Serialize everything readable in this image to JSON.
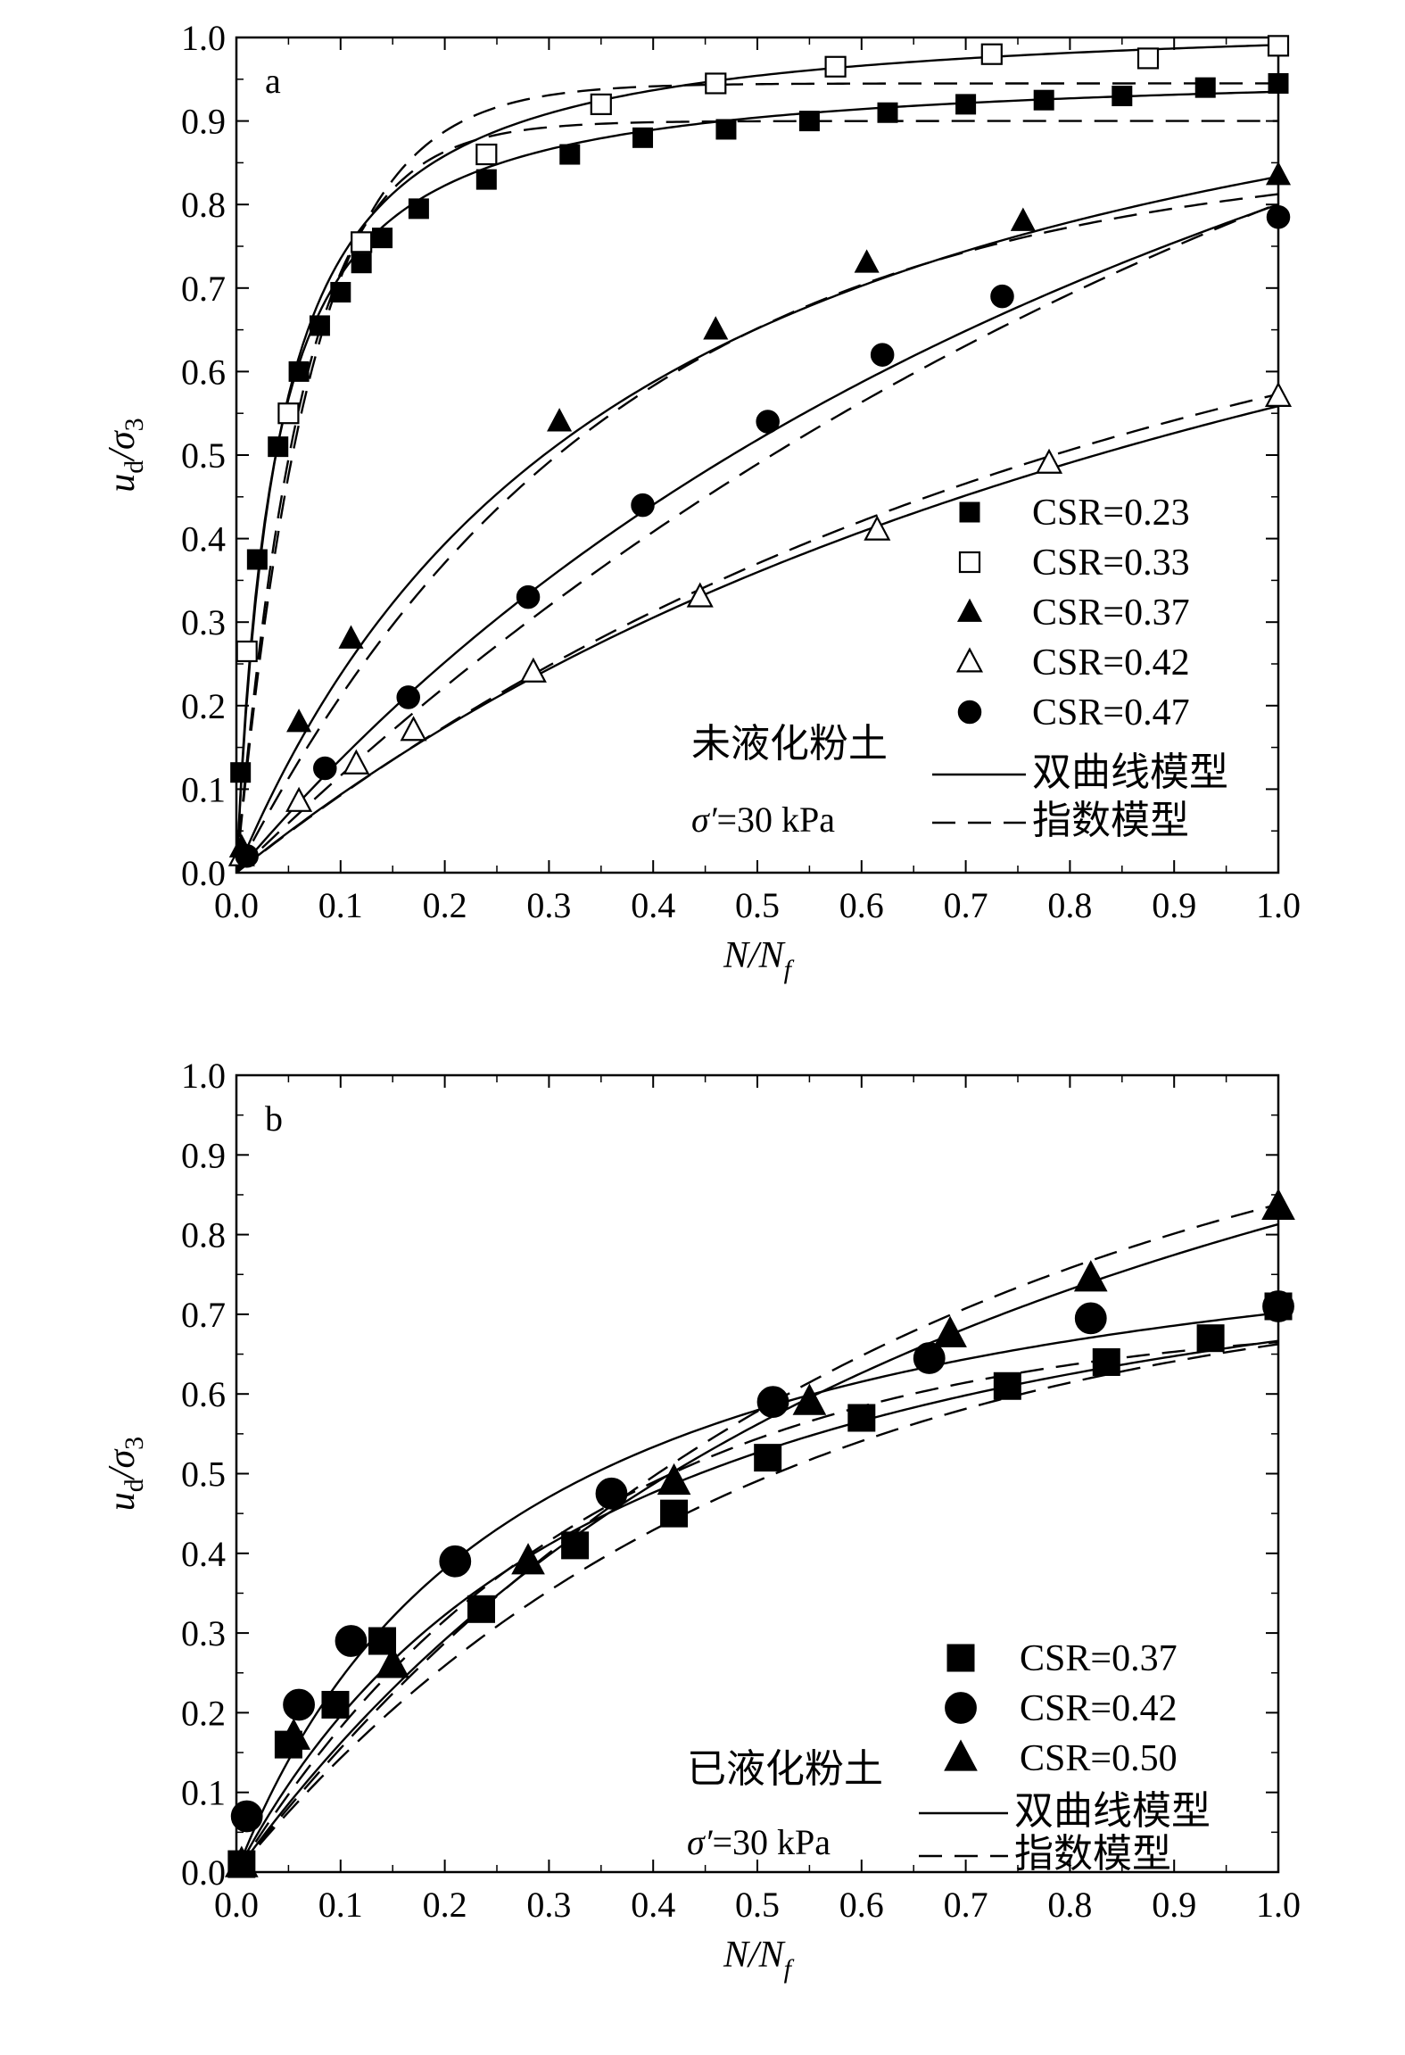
{
  "chart_data": [
    {
      "type": "scatter",
      "panel_label": "a",
      "xlabel": "N/N",
      "xlabel_sub": "f",
      "ylabel": "u",
      "ylabel_sub": "d",
      "ylabel_mid": "/σ",
      "ylabel_sub2": "3",
      "xlim": [
        0,
        1.0
      ],
      "ylim": [
        0,
        1.0
      ],
      "x_ticks": [
        "0.0",
        "0.1",
        "0.2",
        "0.3",
        "0.4",
        "0.5",
        "0.6",
        "0.7",
        "0.8",
        "0.9",
        "1.0"
      ],
      "y_ticks": [
        "0.0",
        "0.1",
        "0.2",
        "0.3",
        "0.4",
        "0.5",
        "0.6",
        "0.7",
        "0.8",
        "0.9",
        "1.0"
      ],
      "annotation": "未液化粉土",
      "condition_label": "σ′=30 kPa",
      "model_legend": [
        {
          "style": "solid",
          "label": "双曲线模型"
        },
        {
          "style": "dashed",
          "label": "指数模型"
        }
      ],
      "series": [
        {
          "name": "CSR=0.23",
          "marker": "square",
          "filled": true,
          "x": [
            0.004,
            0.02,
            0.04,
            0.06,
            0.08,
            0.1,
            0.12,
            0.14,
            0.175,
            0.24,
            0.32,
            0.39,
            0.47,
            0.55,
            0.625,
            0.7,
            0.775,
            0.85,
            0.93,
            1.0
          ],
          "y": [
            0.12,
            0.375,
            0.51,
            0.6,
            0.655,
            0.695,
            0.73,
            0.76,
            0.795,
            0.83,
            0.86,
            0.88,
            0.89,
            0.9,
            0.91,
            0.92,
            0.925,
            0.93,
            0.94,
            0.945
          ],
          "fit_hyperbolic": {
            "a": 0.0365,
            "b": 1.033
          },
          "fit_exponential": {
            "A": 0.9,
            "k": 16.0
          }
        },
        {
          "name": "CSR=0.33",
          "marker": "square",
          "filled": false,
          "x": [
            0.01,
            0.05,
            0.12,
            0.24,
            0.35,
            0.46,
            0.575,
            0.725,
            0.875,
            1.0
          ],
          "y": [
            0.265,
            0.55,
            0.755,
            0.86,
            0.92,
            0.945,
            0.965,
            0.98,
            0.975,
            0.99
          ],
          "fit_hyperbolic": {
            "a": 0.039,
            "b": 0.97
          },
          "fit_exponential": {
            "A": 0.945,
            "k": 14.0
          }
        },
        {
          "name": "CSR=0.37",
          "marker": "triangle",
          "filled": true,
          "x": [
            0.005,
            0.06,
            0.11,
            0.31,
            0.46,
            0.605,
            0.755,
            1.0
          ],
          "y": [
            0.03,
            0.18,
            0.28,
            0.54,
            0.65,
            0.73,
            0.78,
            0.835
          ],
          "fit_hyperbolic": {
            "a": 0.335,
            "b": 0.865
          },
          "fit_exponential": {
            "A": 0.865,
            "k": 2.8
          }
        },
        {
          "name": "CSR=0.42",
          "marker": "triangle",
          "filled": false,
          "x": [
            0.005,
            0.06,
            0.115,
            0.17,
            0.285,
            0.445,
            0.615,
            0.78,
            1.0
          ],
          "y": [
            0.02,
            0.085,
            0.13,
            0.17,
            0.24,
            0.33,
            0.41,
            0.49,
            0.57
          ],
          "fit_hyperbolic": {
            "a": 0.99,
            "b": 0.8
          },
          "fit_exponential": {
            "A": 0.82,
            "k": 1.2
          }
        },
        {
          "name": "CSR=0.47",
          "marker": "circle",
          "filled": true,
          "x": [
            0.01,
            0.085,
            0.165,
            0.28,
            0.39,
            0.51,
            0.62,
            0.735,
            1.0
          ],
          "y": [
            0.02,
            0.125,
            0.21,
            0.33,
            0.44,
            0.54,
            0.62,
            0.69,
            0.785
          ],
          "fit_hyperbolic": {
            "a": 0.68,
            "b": 0.57
          },
          "fit_exponential": {
            "A": 1.35,
            "k": 0.9
          }
        }
      ]
    },
    {
      "type": "scatter",
      "panel_label": "b",
      "xlabel": "N/N",
      "xlabel_sub": "f",
      "ylabel": "u",
      "ylabel_sub": "d",
      "ylabel_mid": "/σ",
      "ylabel_sub2": "3",
      "xlim": [
        0,
        1.0
      ],
      "ylim": [
        0,
        1.0
      ],
      "x_ticks": [
        "0.0",
        "0.1",
        "0.2",
        "0.3",
        "0.4",
        "0.5",
        "0.6",
        "0.7",
        "0.8",
        "0.9",
        "1.0"
      ],
      "y_ticks": [
        "0.0",
        "0.1",
        "0.2",
        "0.3",
        "0.4",
        "0.5",
        "0.6",
        "0.7",
        "0.8",
        "0.9",
        "1.0"
      ],
      "annotation": "已液化粉土",
      "condition_label": "σ′=30 kPa",
      "model_legend": [
        {
          "style": "solid",
          "label": "双曲线模型"
        },
        {
          "style": "dashed",
          "label": "指数模型"
        }
      ],
      "series": [
        {
          "name": "CSR=0.37",
          "marker": "square",
          "filled": true,
          "x": [
            0.005,
            0.05,
            0.095,
            0.14,
            0.235,
            0.325,
            0.42,
            0.51,
            0.6,
            0.74,
            0.835,
            0.935,
            1.0
          ],
          "y": [
            0.01,
            0.16,
            0.21,
            0.29,
            0.33,
            0.41,
            0.45,
            0.52,
            0.57,
            0.61,
            0.64,
            0.67,
            0.71
          ],
          "fit_hyperbolic": {
            "a": 0.4,
            "b": 1.1
          },
          "fit_exponential": {
            "A": 0.755,
            "k": 2.1
          }
        },
        {
          "name": "CSR=0.42",
          "marker": "circle",
          "filled": true,
          "x": [
            0.01,
            0.06,
            0.11,
            0.21,
            0.36,
            0.515,
            0.665,
            0.82,
            1.0
          ],
          "y": [
            0.07,
            0.21,
            0.29,
            0.39,
            0.475,
            0.59,
            0.645,
            0.695,
            0.71
          ],
          "fit_hyperbolic": {
            "a": 0.3,
            "b": 1.125
          },
          "fit_exponential": {
            "A": 0.7,
            "k": 3.0
          }
        },
        {
          "name": "CSR=0.50",
          "marker": "triangle",
          "filled": true,
          "x": [
            0.005,
            0.055,
            0.15,
            0.28,
            0.42,
            0.55,
            0.685,
            0.82,
            1.0
          ],
          "y": [
            0.01,
            0.17,
            0.26,
            0.39,
            0.49,
            0.59,
            0.675,
            0.745,
            0.835
          ],
          "fit_hyperbolic": {
            "a": 0.55,
            "b": 0.68
          },
          "fit_exponential": {
            "A": 1.05,
            "k": 1.6
          }
        }
      ]
    }
  ]
}
